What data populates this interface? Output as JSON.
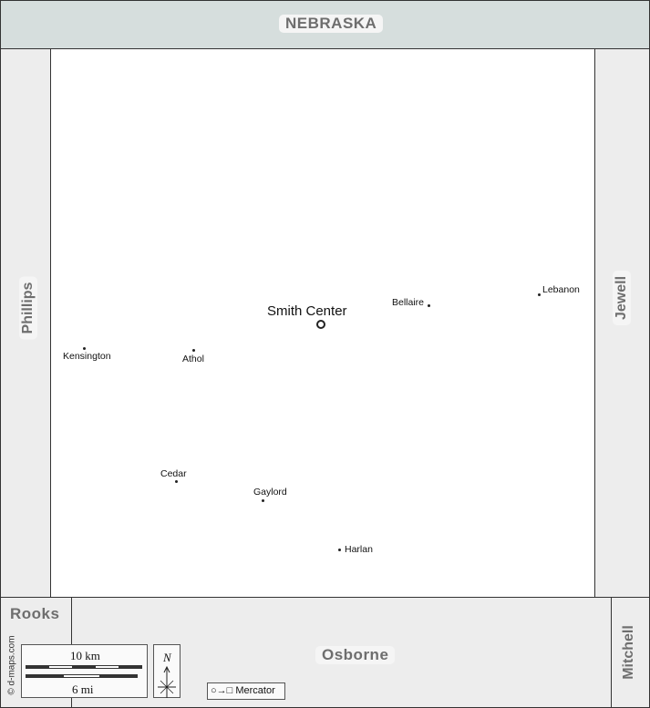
{
  "neighbors": {
    "north": "NEBRASKA",
    "west": "Phillips",
    "east": "Jewell",
    "southwest": "Rooks",
    "south": "Osborne",
    "southeast": "Mitchell"
  },
  "county_seat": {
    "name": "Smith Center"
  },
  "towns": [
    {
      "name": "Lebanon"
    },
    {
      "name": "Bellaire"
    },
    {
      "name": "Kensington"
    },
    {
      "name": "Athol"
    },
    {
      "name": "Cedar"
    },
    {
      "name": "Gaylord"
    },
    {
      "name": "Harlan"
    }
  ],
  "scale": {
    "km_label": "10 km",
    "mi_label": "6 mi"
  },
  "compass": {
    "label": "N"
  },
  "projection": {
    "label": "Mercator",
    "glyph": "○→□"
  },
  "credit": "© d-maps.com"
}
